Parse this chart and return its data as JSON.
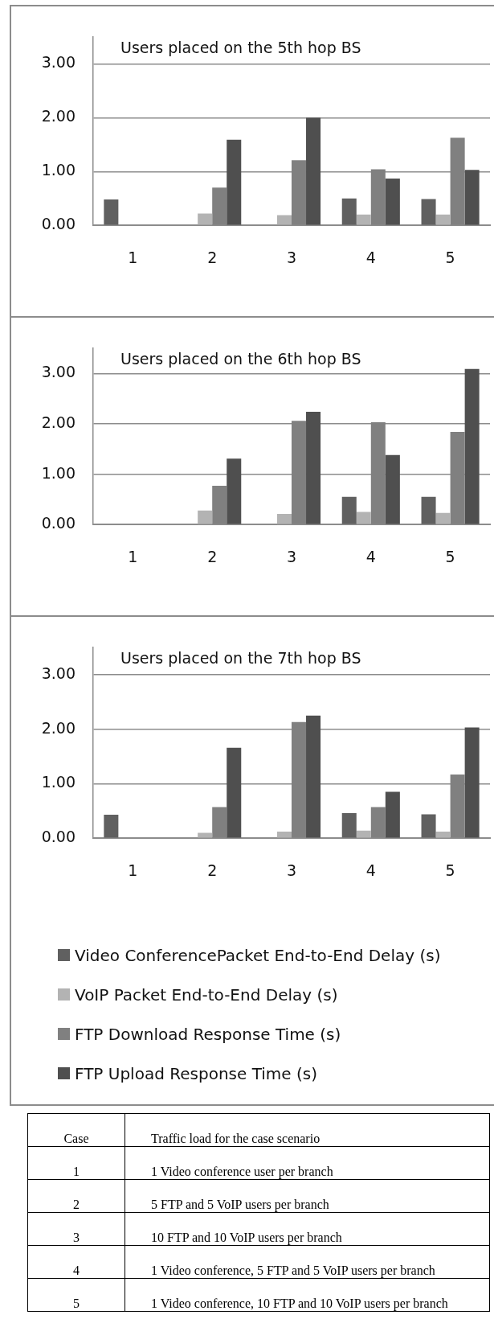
{
  "chart_data": [
    {
      "type": "bar",
      "title": "Users placed on the 5th hop BS",
      "categories": [
        "1",
        "2",
        "3",
        "4",
        "5"
      ],
      "ylim": [
        0,
        3.5
      ],
      "yticks": [
        {
          "value": 0,
          "label": "0.00"
        },
        {
          "value": 1,
          "label": "1.00"
        },
        {
          "value": 2,
          "label": "2.00"
        },
        {
          "value": 3,
          "label": "3.00"
        }
      ],
      "grid": "y",
      "series": [
        {
          "color": "#606060",
          "values": [
            0.48,
            0,
            0,
            0.5,
            0.49
          ]
        },
        {
          "color": "#b3b3b3",
          "values": [
            0,
            0.22,
            0.19,
            0.2,
            0.2
          ]
        },
        {
          "color": "#808080",
          "values": [
            0,
            0.7,
            1.21,
            1.04,
            1.63
          ]
        },
        {
          "color": "#4f4f4f",
          "values": [
            0,
            1.59,
            2.0,
            0.87,
            1.03
          ]
        }
      ]
    },
    {
      "type": "bar",
      "title": "Users placed on the 6th hop BS",
      "categories": [
        "1",
        "2",
        "3",
        "4",
        "5"
      ],
      "ylim": [
        0,
        3.5
      ],
      "yticks": [
        {
          "value": 0,
          "label": "0.00"
        },
        {
          "value": 1,
          "label": "1.00"
        },
        {
          "value": 2,
          "label": "2.00"
        },
        {
          "value": 3,
          "label": "3.00"
        }
      ],
      "grid": "y",
      "series": [
        {
          "color": "#606060",
          "values": [
            0,
            0,
            0,
            0.55,
            0.55
          ]
        },
        {
          "color": "#b3b3b3",
          "values": [
            0,
            0.28,
            0.21,
            0.25,
            0.23
          ]
        },
        {
          "color": "#808080",
          "values": [
            0,
            0.77,
            2.06,
            2.03,
            1.84
          ]
        },
        {
          "color": "#4f4f4f",
          "values": [
            0,
            1.31,
            2.24,
            1.38,
            3.09
          ]
        }
      ]
    },
    {
      "type": "bar",
      "title": "Users placed on the 7th hop BS",
      "categories": [
        "1",
        "2",
        "3",
        "4",
        "5"
      ],
      "ylim": [
        0,
        3.5
      ],
      "yticks": [
        {
          "value": 0,
          "label": "0.00"
        },
        {
          "value": 1,
          "label": "1.00"
        },
        {
          "value": 2,
          "label": "2.00"
        },
        {
          "value": 3,
          "label": "3.00"
        }
      ],
      "grid": "y",
      "legend": "bottom",
      "series": [
        {
          "name": "Video ConferencePacket End-to-End Delay (s)",
          "color": "#606060",
          "values": [
            0.43,
            0,
            0,
            0.46,
            0.44
          ]
        },
        {
          "name": "VoIP Packet End-to-End Delay (s)",
          "color": "#b3b3b3",
          "values": [
            0,
            0.1,
            0.12,
            0.14,
            0.12
          ]
        },
        {
          "name": "FTP Download Response Time (s)",
          "color": "#808080",
          "values": [
            0,
            0.57,
            2.13,
            0.57,
            1.17
          ]
        },
        {
          "name": "FTP Upload Response Time (s)",
          "color": "#4f4f4f",
          "values": [
            0,
            1.66,
            2.25,
            0.85,
            2.03
          ]
        }
      ],
      "annotations": [
        "Case",
        "Traffic load for the case scenario",
        "1",
        "1 Video conference user per branch",
        "2",
        "5 FTP and 5 VoIP users per branch",
        "3",
        "10 FTP and 10 VoIP users per branch",
        "4",
        "1 Video conference, 5 FTP and 5 VoIP users per branch",
        "5",
        "1 Video conference, 10 FTP and 10 VoIP users per branch"
      ]
    }
  ]
}
